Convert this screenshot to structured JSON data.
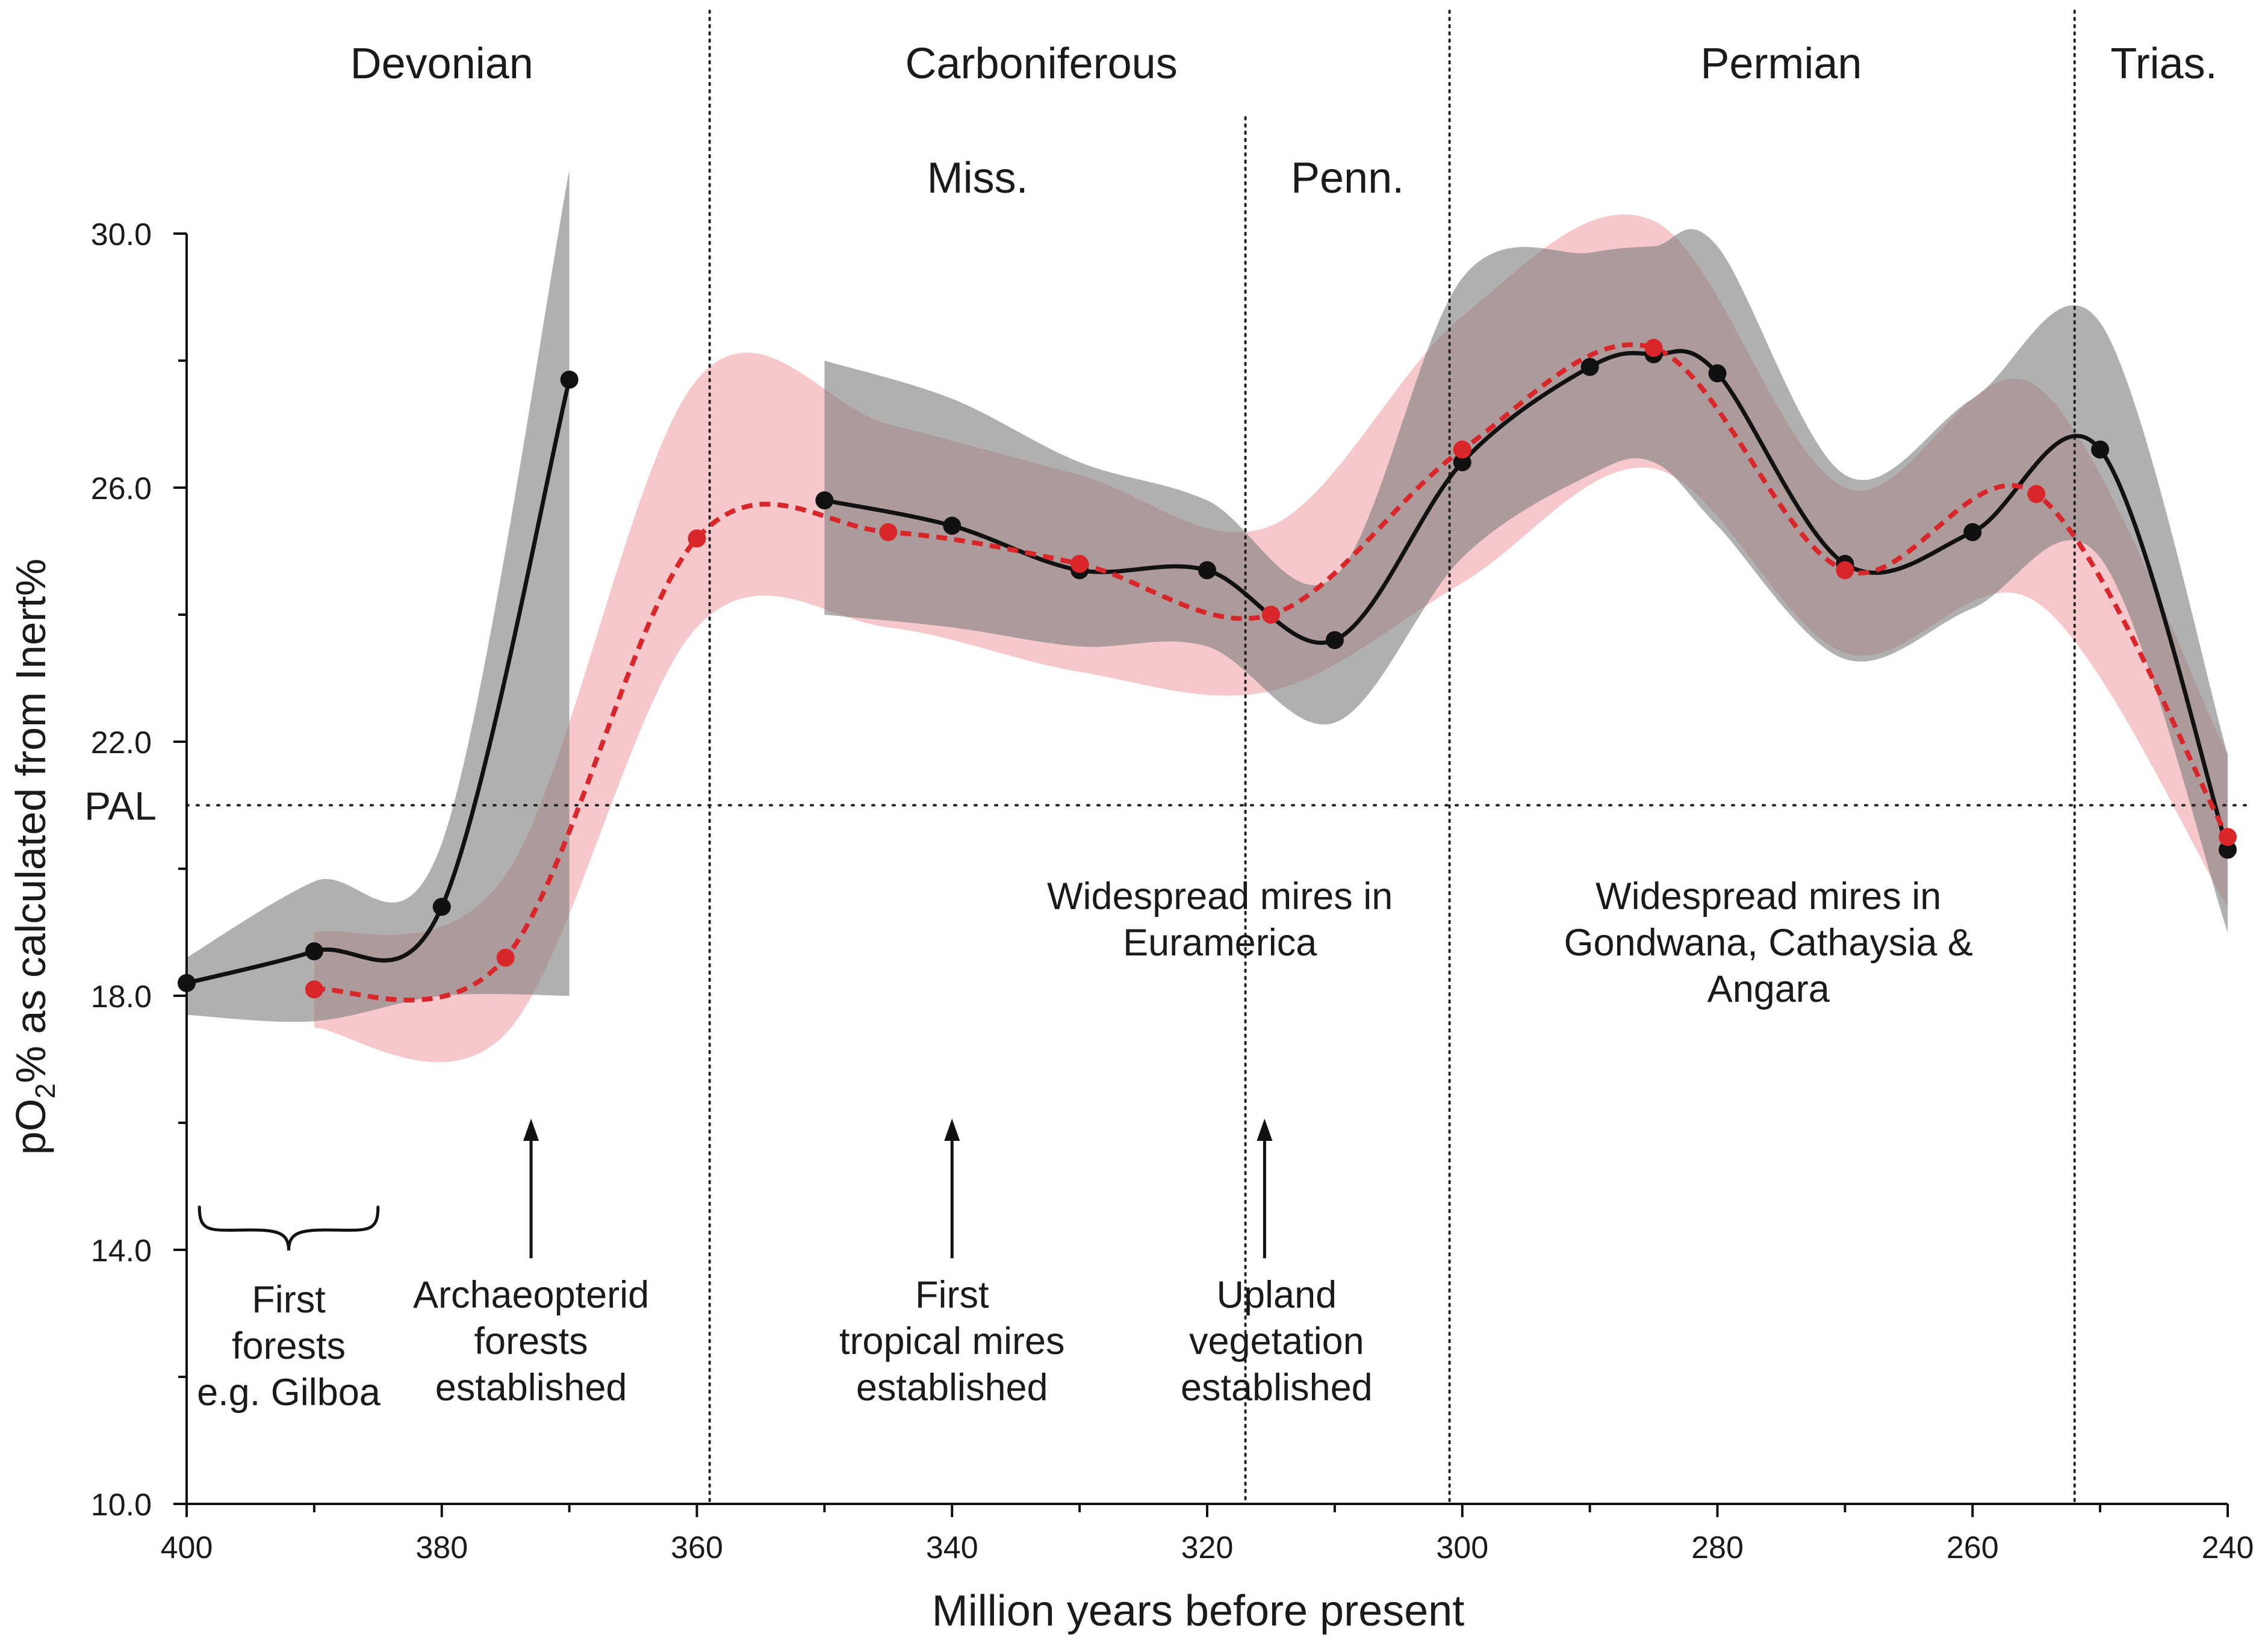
{
  "chart_data": {
    "type": "line",
    "xlabel": "Million years before present",
    "ylabel_parts": {
      "prefix": "pO",
      "subscript": "2",
      "suffix": "% as calculated from Inert%"
    },
    "xlim": [
      400,
      240
    ],
    "ylim": [
      10,
      30
    ],
    "x_ticks": [
      400,
      380,
      360,
      340,
      320,
      300,
      280,
      260,
      240
    ],
    "x_tick_labels": [
      "400",
      "380",
      "360",
      "340",
      "320",
      "300",
      "280",
      "260",
      "240"
    ],
    "y_ticks": [
      10,
      14,
      18,
      22,
      26,
      30
    ],
    "y_tick_labels": [
      "10.0",
      "14.0",
      "18.0",
      "22.0",
      "26.0",
      "30.0"
    ],
    "y_minor_ticks": [
      12,
      16,
      20,
      24,
      28
    ],
    "pal": {
      "label": "PAL",
      "value": 21
    },
    "periods": [
      {
        "name": "Devonian",
        "label_x": 380
      },
      {
        "name": "Carboniferous",
        "label_x": 333
      },
      {
        "name": "Permian",
        "label_x": 275
      },
      {
        "name": "Trias.",
        "label_x": 245
      }
    ],
    "subperiods": [
      {
        "name": "Miss.",
        "label_x": 338
      },
      {
        "name": "Penn.",
        "label_x": 309
      }
    ],
    "boundaries": [
      {
        "x": 359,
        "kind": "period"
      },
      {
        "x": 301,
        "kind": "period"
      },
      {
        "x": 252,
        "kind": "period"
      },
      {
        "x": 317,
        "kind": "subperiod"
      }
    ],
    "series": [
      {
        "name": "black",
        "color": "#111111",
        "band_color": "#7f7f7f",
        "style": "solid",
        "segments": [
          {
            "x": [
              400,
              390,
              380,
              370
            ],
            "y": [
              18.2,
              18.7,
              19.4,
              27.7
            ],
            "upper": [
              18.6,
              19.8,
              20.4,
              31.0
            ],
            "lower": [
              17.7,
              17.6,
              18.0,
              18.0
            ]
          },
          {
            "x": [
              350,
              340,
              330,
              320,
              310,
              300,
              290,
              285,
              280,
              270,
              260,
              250,
              240
            ],
            "y": [
              25.8,
              25.4,
              24.7,
              24.7,
              23.6,
              26.4,
              27.9,
              28.1,
              27.8,
              24.8,
              25.3,
              26.6,
              20.3
            ],
            "upper": [
              28.0,
              27.4,
              26.4,
              25.8,
              24.6,
              29.3,
              29.7,
              29.8,
              29.8,
              26.2,
              27.4,
              28.6,
              21.8
            ],
            "lower": [
              24.0,
              23.8,
              23.5,
              23.5,
              22.3,
              24.9,
              26.2,
              26.4,
              25.4,
              23.3,
              24.1,
              24.9,
              19.0
            ]
          }
        ]
      },
      {
        "name": "red",
        "color": "#d9262b",
        "band_color": "#ef9aa0",
        "style": "dashed",
        "segments": [
          {
            "x": [
              390,
              375,
              360,
              345,
              330,
              315,
              300,
              285,
              270,
              255,
              240
            ],
            "y": [
              18.1,
              18.6,
              25.2,
              25.3,
              24.8,
              24.0,
              26.6,
              28.2,
              24.7,
              25.9,
              20.5
            ],
            "upper": [
              19.0,
              19.9,
              27.7,
              27.0,
              26.2,
              25.4,
              28.7,
              30.2,
              26.0,
              27.6,
              21.8
            ],
            "lower": [
              17.5,
              17.4,
              23.8,
              23.8,
              23.1,
              22.8,
              24.5,
              26.3,
              23.4,
              24.2,
              19.4
            ]
          }
        ]
      }
    ],
    "annotations": [
      {
        "id": "first-forests",
        "lines": [
          "First",
          "forests",
          "e.g. Gilboa"
        ],
        "x": 392,
        "marker": "brace",
        "marker_from": 399,
        "marker_to": 385
      },
      {
        "id": "archaeopterid",
        "lines": [
          "Archaeopterid",
          "forests",
          "established"
        ],
        "x": 373,
        "marker": "arrow"
      },
      {
        "id": "tropical-mires",
        "lines": [
          "First",
          "tropical mires",
          "established"
        ],
        "x": 340,
        "marker": "arrow"
      },
      {
        "id": "upland",
        "lines": [
          "Upland",
          "vegetation",
          "established"
        ],
        "x": 315.5,
        "marker": "arrow"
      },
      {
        "id": "euramerica",
        "lines": [
          "Widespread mires in",
          "Euramerica"
        ],
        "x": 319
      },
      {
        "id": "gondwana",
        "lines": [
          "Widespread mires in",
          "Gondwana, Cathaysia &",
          "Angara"
        ],
        "x": 276
      }
    ]
  }
}
